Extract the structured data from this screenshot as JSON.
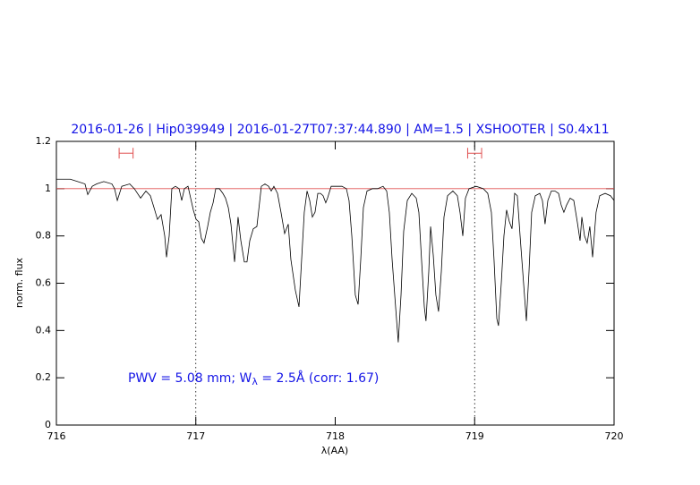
{
  "chart_data": {
    "type": "line",
    "title": "2016-01-26 | Hip039949 | 2016-01-27T07:37:44.890 | AM=1.5 | XSHOOTER | S0.4x11",
    "annotation_parts": [
      "PWV = 5.08 mm; W",
      "λ",
      " = 2.5Å (corr: 1.67)"
    ],
    "x_label": "λ(AA)",
    "y_label": "norm. flux",
    "xlim": [
      716,
      720
    ],
    "xticks": [
      716,
      717,
      718,
      719,
      720
    ],
    "ylim": [
      0,
      1.2
    ],
    "yticks": [
      0,
      0.2,
      0.4,
      0.6,
      0.8,
      1,
      1.2
    ],
    "reference_lines": [
      {
        "y": 1,
        "color": "#e05050"
      }
    ],
    "vlines": [
      717,
      719
    ],
    "intervals": [
      {
        "x": [
          716.45,
          716.55
        ],
        "y": 1.15,
        "color": "#e05050"
      },
      {
        "x": [
          718.95,
          719.05
        ],
        "y": 1.15,
        "color": "#e05050"
      }
    ],
    "x": [
      716.0,
      716.1,
      716.205,
      716.225,
      716.257,
      716.289,
      716.34,
      716.398,
      716.417,
      716.437,
      716.469,
      716.526,
      716.559,
      716.604,
      716.642,
      716.674,
      716.7,
      716.725,
      716.751,
      716.777,
      716.79,
      716.809,
      716.828,
      716.854,
      716.88,
      716.899,
      716.918,
      716.944,
      716.963,
      716.982,
      717.002,
      717.021,
      717.04,
      717.059,
      717.085,
      717.104,
      717.124,
      717.143,
      717.169,
      717.194,
      717.213,
      717.233,
      717.252,
      717.278,
      717.303,
      717.323,
      717.348,
      717.367,
      717.387,
      717.412,
      717.438,
      717.457,
      717.47,
      717.496,
      717.522,
      717.541,
      717.56,
      717.586,
      717.611,
      717.637,
      717.663,
      717.682,
      717.714,
      717.74,
      717.759,
      717.778,
      717.798,
      717.817,
      717.836,
      717.855,
      717.875,
      717.894,
      717.913,
      717.932,
      717.945,
      717.971,
      718.009,
      718.048,
      718.08,
      718.099,
      718.119,
      718.144,
      718.164,
      718.183,
      718.202,
      718.228,
      718.266,
      718.305,
      718.343,
      718.369,
      718.388,
      718.408,
      718.433,
      718.452,
      718.472,
      718.491,
      718.517,
      718.549,
      718.581,
      718.6,
      718.619,
      718.639,
      718.651,
      718.671,
      718.684,
      718.703,
      718.722,
      718.741,
      718.761,
      718.78,
      718.806,
      718.844,
      718.876,
      718.895,
      718.915,
      718.934,
      718.96,
      719.011,
      719.062,
      719.094,
      719.12,
      719.139,
      719.159,
      719.171,
      719.191,
      719.21,
      719.229,
      719.249,
      719.268,
      719.287,
      719.306,
      719.326,
      719.351,
      719.371,
      719.39,
      719.409,
      719.435,
      719.467,
      719.486,
      719.505,
      719.525,
      719.55,
      719.576,
      719.602,
      719.621,
      719.64,
      719.659,
      719.685,
      719.711,
      719.736,
      719.756,
      719.769,
      719.788,
      719.807,
      719.826,
      719.846,
      719.871,
      719.897,
      719.936,
      719.974,
      720.0
    ],
    "series": [
      {
        "color": "#000000",
        "values": [
          1.04,
          1.04,
          1.02,
          0.975,
          1.01,
          1.02,
          1.03,
          1.02,
          1.0,
          0.95,
          1.01,
          1.02,
          1.0,
          0.96,
          0.99,
          0.97,
          0.92,
          0.87,
          0.89,
          0.8,
          0.71,
          0.8,
          1.0,
          1.01,
          1.0,
          0.95,
          1.0,
          1.01,
          0.96,
          0.91,
          0.87,
          0.86,
          0.79,
          0.77,
          0.84,
          0.9,
          0.94,
          1.0,
          1.0,
          0.98,
          0.96,
          0.92,
          0.85,
          0.69,
          0.88,
          0.78,
          0.69,
          0.69,
          0.78,
          0.83,
          0.84,
          0.94,
          1.01,
          1.02,
          1.01,
          0.99,
          1.01,
          0.98,
          0.9,
          0.81,
          0.85,
          0.7,
          0.57,
          0.5,
          0.7,
          0.9,
          0.99,
          0.95,
          0.88,
          0.9,
          0.98,
          0.98,
          0.97,
          0.94,
          0.96,
          1.01,
          1.01,
          1.01,
          1.0,
          0.95,
          0.8,
          0.55,
          0.51,
          0.7,
          0.92,
          0.99,
          1.0,
          1.0,
          1.01,
          0.99,
          0.9,
          0.7,
          0.5,
          0.35,
          0.55,
          0.82,
          0.95,
          0.98,
          0.96,
          0.9,
          0.7,
          0.5,
          0.44,
          0.65,
          0.84,
          0.72,
          0.55,
          0.48,
          0.65,
          0.88,
          0.97,
          0.99,
          0.97,
          0.9,
          0.8,
          0.96,
          1.0,
          1.01,
          1.0,
          0.98,
          0.9,
          0.7,
          0.45,
          0.42,
          0.6,
          0.8,
          0.91,
          0.86,
          0.83,
          0.98,
          0.97,
          0.8,
          0.6,
          0.44,
          0.65,
          0.9,
          0.97,
          0.98,
          0.95,
          0.85,
          0.95,
          0.99,
          0.99,
          0.98,
          0.93,
          0.9,
          0.93,
          0.96,
          0.95,
          0.86,
          0.78,
          0.88,
          0.8,
          0.77,
          0.84,
          0.71,
          0.9,
          0.97,
          0.98,
          0.97,
          0.95
        ]
      }
    ]
  }
}
